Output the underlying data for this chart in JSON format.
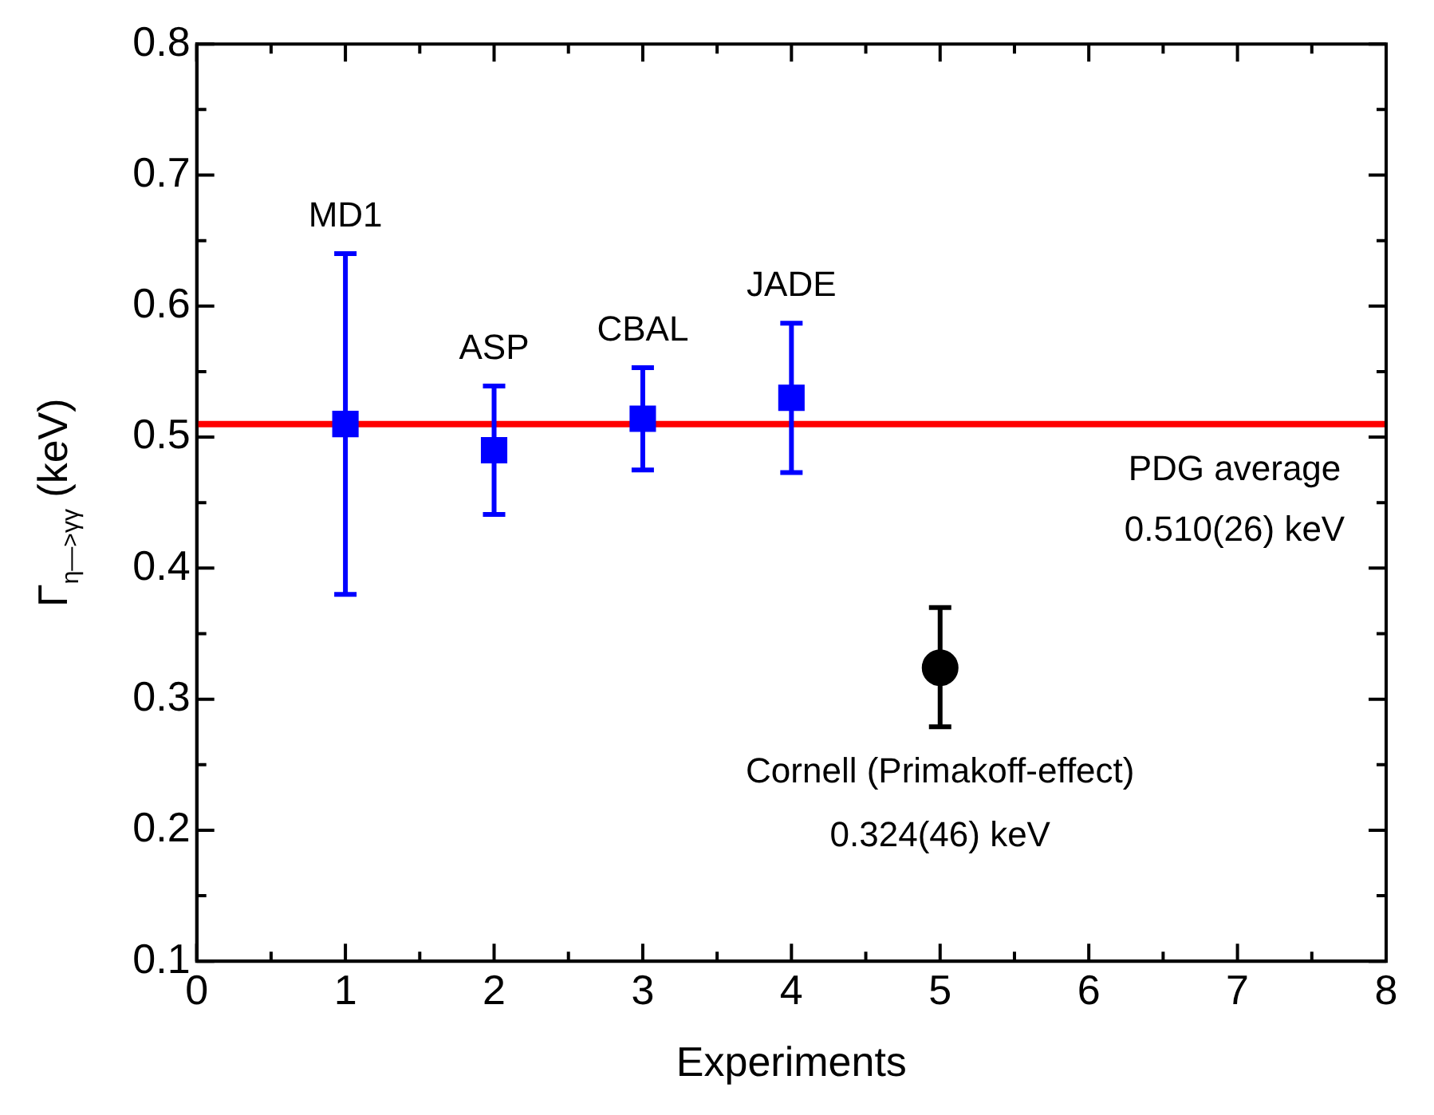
{
  "chart_data": {
    "type": "scatter",
    "xlabel": "Experiments",
    "ylabel": "Γ$_{η—>γγ}$ (keV)",
    "xlim": [
      0,
      8
    ],
    "ylim": [
      0.1,
      0.8
    ],
    "xticks": [
      0,
      {
        "value": 0.5,
        "label": null
      },
      1,
      {
        "value": 1.5,
        "label": null
      },
      2,
      {
        "value": 2.5,
        "label": null
      },
      3,
      {
        "value": 3.5,
        "label": null
      },
      4,
      {
        "value": 4.5,
        "label": null
      },
      5,
      {
        "value": 5.5,
        "label": null
      },
      6,
      {
        "value": 6.5,
        "label": null
      },
      7,
      {
        "value": 7.5,
        "label": null
      },
      8
    ],
    "yticks": [
      0.1,
      {
        "value": 0.15,
        "label": null
      },
      0.2,
      {
        "value": 0.25,
        "label": null
      },
      0.3,
      {
        "value": 0.35,
        "label": null
      },
      0.4,
      {
        "value": 0.45,
        "label": null
      },
      0.5,
      {
        "value": 0.55,
        "label": null
      },
      0.6,
      {
        "value": 0.65,
        "label": null
      },
      0.7,
      {
        "value": 0.75,
        "label": null
      },
      0.8
    ],
    "grid": false,
    "legend": false,
    "series": [
      {
        "color": "#0000ff",
        "marker": "square",
        "x": [
          1,
          2,
          3,
          4
        ],
        "values": [
          0.51,
          0.49,
          0.514,
          0.53
        ],
        "errors": [
          [
            0.38,
            0.64
          ],
          [
            0.441,
            0.539
          ],
          [
            0.475,
            0.553
          ],
          [
            0.473,
            0.587
          ]
        ]
      },
      {
        "color": "#000000",
        "marker": "circle",
        "x": [
          5
        ],
        "values": [
          0.324
        ],
        "errors": [
          [
            0.279,
            0.37
          ]
        ]
      }
    ],
    "ref_lines": [
      {
        "axis": "y",
        "value": 0.51,
        "label": "PDG average\n0.510(26) keV",
        "color": "#ff0000"
      }
    ],
    "annotations": [
      {
        "text": "MD1",
        "x": 1,
        "y": 0.64
      },
      {
        "text": "ASP",
        "x": 2,
        "y": 0.539
      },
      {
        "text": "CBAL",
        "x": 3,
        "y": 0.553
      },
      {
        "text": "JADE",
        "x": 4,
        "y": 0.587
      },
      {
        "text": "Cornell (Primakoff-effect)\n0.324(46) keV",
        "x": 5,
        "y": 0.279
      }
    ]
  }
}
